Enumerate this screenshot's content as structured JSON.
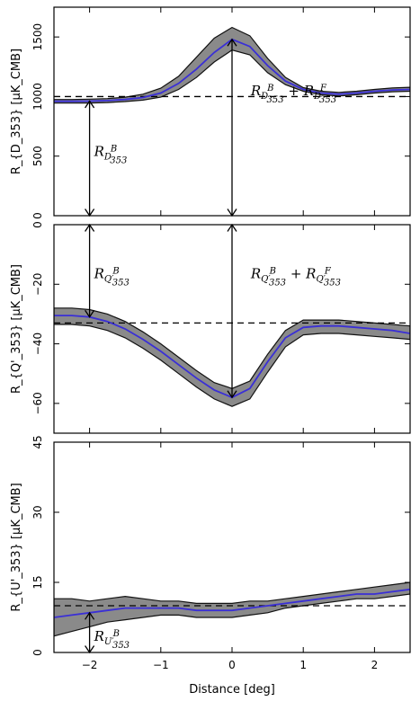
{
  "figure": {
    "xlabel": "Distance [deg]",
    "xlim": [
      -2.5,
      2.5
    ],
    "xticks": [
      -2,
      -1,
      0,
      1,
      2
    ]
  },
  "chart_data": [
    {
      "type": "line",
      "ylabel": "R_{D_353} [μK_CMB]",
      "ylim": [
        0,
        1750
      ],
      "yticks": [
        0,
        500,
        1000,
        1500
      ],
      "x": [
        -2.5,
        -2.25,
        -2.0,
        -1.75,
        -1.5,
        -1.25,
        -1.0,
        -0.75,
        -0.5,
        -0.25,
        0.0,
        0.25,
        0.5,
        0.75,
        1.0,
        1.25,
        1.5,
        1.75,
        2.0,
        2.25,
        2.5
      ],
      "series": [
        {
          "role": "mean",
          "color": "#3a2fd6",
          "values": [
            960,
            960,
            962,
            966,
            975,
            992,
            1030,
            1110,
            1230,
            1370,
            1480,
            1420,
            1260,
            1130,
            1060,
            1030,
            1020,
            1030,
            1045,
            1055,
            1060
          ]
        },
        {
          "role": "upper",
          "values": [
            975,
            975,
            978,
            983,
            995,
            1020,
            1070,
            1170,
            1330,
            1490,
            1580,
            1510,
            1320,
            1160,
            1075,
            1045,
            1035,
            1045,
            1060,
            1072,
            1078
          ]
        },
        {
          "role": "lower",
          "values": [
            945,
            945,
            946,
            950,
            958,
            970,
            995,
            1060,
            1160,
            1290,
            1390,
            1350,
            1200,
            1100,
            1045,
            1015,
            1005,
            1015,
            1030,
            1040,
            1045
          ]
        }
      ],
      "baseline": 1000,
      "annotations": [
        {
          "x": -2,
          "y_from": 0,
          "y_to": 962,
          "label_main": "R",
          "label_sub": "D",
          "label_sup": "B",
          "label_sub2": "353",
          "label_x": -2.0,
          "label_y": 500
        },
        {
          "x": 0,
          "y_from": 0,
          "y_to": 1480,
          "label_main": "R",
          "label_sub": "D",
          "label_sup": "B",
          "label_sub2": "353",
          "label_plus": "+",
          "label_main2": "R",
          "label_sub_b": "D",
          "label_sup_b": "F",
          "label_sub2_b": "353",
          "label_x": 0.2,
          "label_y": 1010
        }
      ]
    },
    {
      "type": "line",
      "ylabel": "R_{Q'_353} [μK_CMB]",
      "ylim": [
        -70,
        0
      ],
      "yticks": [
        -60,
        -40,
        -20,
        0
      ],
      "x": [
        -2.5,
        -2.25,
        -2.0,
        -1.75,
        -1.5,
        -1.25,
        -1.0,
        -0.75,
        -0.5,
        -0.25,
        0.0,
        0.25,
        0.5,
        0.75,
        1.0,
        1.25,
        1.5,
        1.75,
        2.0,
        2.25,
        2.5
      ],
      "series": [
        {
          "role": "mean",
          "color": "#3a2fd6",
          "values": [
            -30.5,
            -30.5,
            -31.0,
            -32.5,
            -35.0,
            -38.5,
            -42.5,
            -47.0,
            -51.5,
            -55.5,
            -58.0,
            -55.0,
            -46.0,
            -38.0,
            -34.5,
            -34.0,
            -34.0,
            -34.5,
            -35.0,
            -35.5,
            -36.5
          ]
        },
        {
          "role": "upper",
          "values": [
            -28.0,
            -28.0,
            -28.5,
            -30.0,
            -32.5,
            -36.0,
            -40.0,
            -44.5,
            -49.0,
            -53.0,
            -55.0,
            -52.5,
            -43.5,
            -35.5,
            -32.0,
            -32.0,
            -32.0,
            -32.5,
            -33.0,
            -33.5,
            -34.0
          ]
        },
        {
          "role": "lower",
          "values": [
            -33.5,
            -33.5,
            -34.0,
            -35.5,
            -38.0,
            -41.5,
            -45.5,
            -50.0,
            -54.5,
            -58.5,
            -61.0,
            -58.5,
            -49.5,
            -41.0,
            -37.0,
            -36.5,
            -36.5,
            -37.0,
            -37.5,
            -38.0,
            -38.5
          ]
        }
      ],
      "baseline": -33,
      "annotations": [
        {
          "x": -2,
          "y_from": 0,
          "y_to": -31.0,
          "label_main": "R",
          "label_sub": "Q′",
          "label_sup": "B",
          "label_sub2": "353",
          "label_x": -2.0,
          "label_y": -18
        },
        {
          "x": 0,
          "y_from": 0,
          "y_to": -58.0,
          "label_main": "R",
          "label_sub": "Q′",
          "label_sup": "B",
          "label_sub2": "353",
          "label_plus": "+",
          "label_main2": "R",
          "label_sub_b": "Q′",
          "label_sup_b": "F",
          "label_sub2_b": "353",
          "label_x": 0.2,
          "label_y": -18
        }
      ]
    },
    {
      "type": "line",
      "ylabel": "R_{U'_353} [μK_CMB]",
      "ylim": [
        0,
        45
      ],
      "yticks": [
        0,
        15,
        30,
        45
      ],
      "x": [
        -2.5,
        -2.25,
        -2.0,
        -1.75,
        -1.5,
        -1.25,
        -1.0,
        -0.75,
        -0.5,
        -0.25,
        0.0,
        0.25,
        0.5,
        0.75,
        1.0,
        1.25,
        1.5,
        1.75,
        2.0,
        2.25,
        2.5
      ],
      "series": [
        {
          "role": "mean",
          "color": "#3a2fd6",
          "values": [
            7.5,
            8.0,
            8.5,
            9.0,
            9.5,
            9.5,
            9.5,
            9.5,
            9.0,
            9.0,
            9.0,
            9.5,
            10.0,
            10.5,
            11.0,
            11.5,
            12.0,
            12.5,
            12.5,
            13.0,
            13.5
          ]
        },
        {
          "role": "upper",
          "values": [
            11.5,
            11.5,
            11.0,
            11.5,
            12.0,
            11.5,
            11.0,
            11.0,
            10.5,
            10.5,
            10.5,
            11.0,
            11.0,
            11.5,
            12.0,
            12.5,
            13.0,
            13.5,
            14.0,
            14.5,
            15.0
          ]
        },
        {
          "role": "lower",
          "values": [
            3.5,
            4.5,
            5.5,
            6.5,
            7.0,
            7.5,
            8.0,
            8.0,
            7.5,
            7.5,
            7.5,
            8.0,
            8.5,
            9.5,
            10.0,
            10.5,
            11.0,
            11.5,
            11.5,
            12.0,
            12.5
          ]
        }
      ],
      "baseline": 10,
      "annotations": [
        {
          "x": -2,
          "y_from": 0,
          "y_to": 8.5,
          "label_main": "R",
          "label_sub": "U′",
          "label_sup": "B",
          "label_sub2": "353",
          "label_x": -2.0,
          "label_y": 2.5
        }
      ]
    }
  ]
}
